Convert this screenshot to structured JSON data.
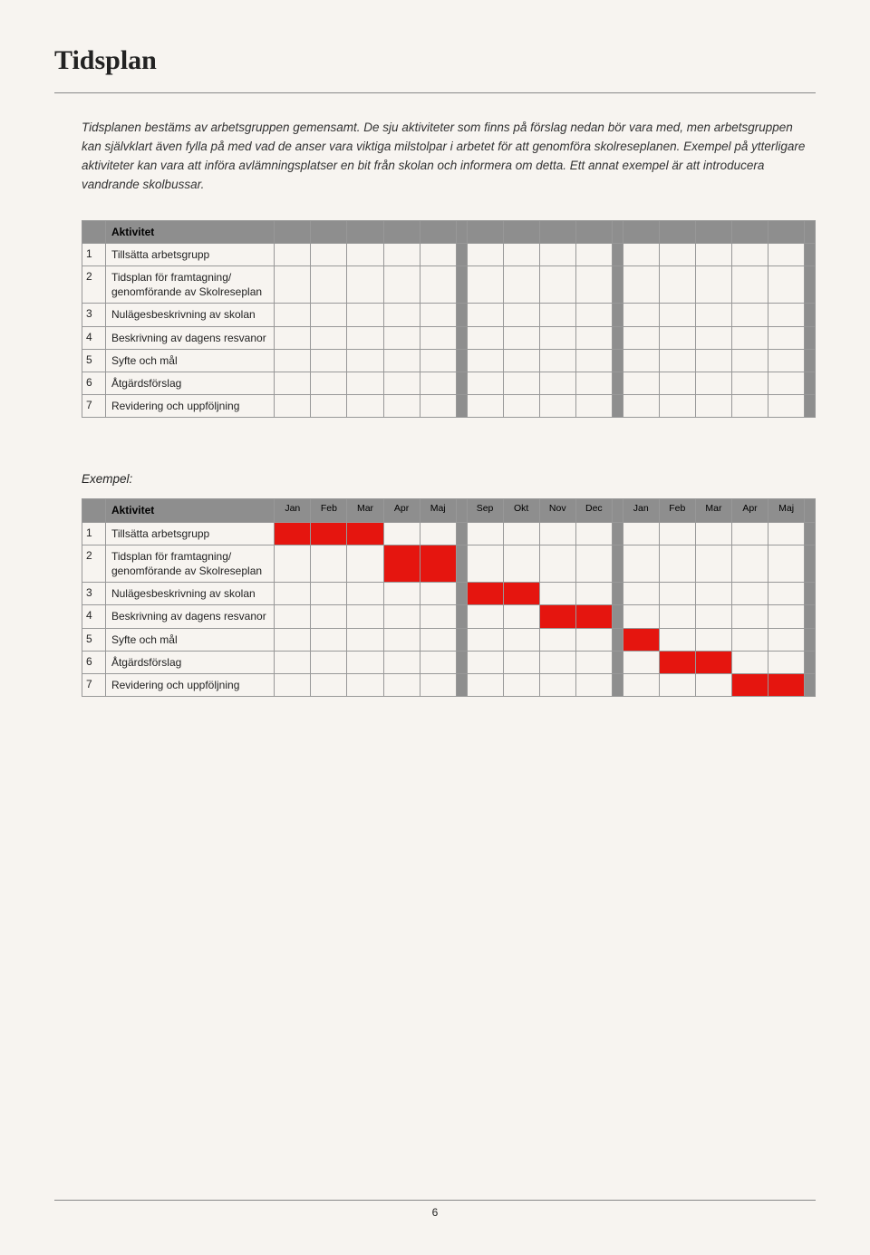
{
  "pageTitle": "Tidsplan",
  "intro": "Tidsplanen bestäms av arbetsgruppen gemensamt. De sju aktiviteter som finns på förslag nedan bör vara med, men arbetsgruppen kan självklart även fylla på med vad de anser vara viktiga milstolpar i arbetet för att genomföra skolreseplanen. Exempel på ytterligare aktiviteter kan vara att införa avlämningsplatser en bit från skolan och informera om detta. Ett annat exempel är att introducera vandrande skolbussar.",
  "activityHeader": "Aktivitet",
  "activities": [
    {
      "num": "1",
      "label": "Tillsätta arbetsgrupp"
    },
    {
      "num": "2",
      "label": "Tidsplan för framtagning/ genomförande av Skolreseplan"
    },
    {
      "num": "3",
      "label": "Nulägesbeskrivning av skolan"
    },
    {
      "num": "4",
      "label": "Beskrivning av dagens resvanor"
    },
    {
      "num": "5",
      "label": "Syfte och mål"
    },
    {
      "num": "6",
      "label": "Åtgärdsförslag"
    },
    {
      "num": "7",
      "label": "Revidering och uppföljning"
    }
  ],
  "exampleLabel": "Exempel:",
  "months": [
    "Jan",
    "Feb",
    "Mar",
    "Apr",
    "Maj",
    "Sep",
    "Okt",
    "Nov",
    "Dec",
    "Jan",
    "Feb",
    "Mar",
    "Apr",
    "Maj"
  ],
  "gaps": [
    5,
    9,
    14
  ],
  "exampleFills": {
    "1": [
      0,
      1,
      2
    ],
    "2": [
      3,
      4
    ],
    "3": [
      5,
      6
    ],
    "4": [
      7,
      8
    ],
    "5": [
      9
    ],
    "6": [
      10,
      11
    ],
    "7": [
      12,
      13
    ]
  },
  "colors": {
    "fill": "#e5150f",
    "headerBg": "#8e8e8e",
    "gapBg": "#8e8e8e",
    "border": "#989898",
    "pageBg": "#f7f4f0"
  },
  "pageNumber": "6"
}
